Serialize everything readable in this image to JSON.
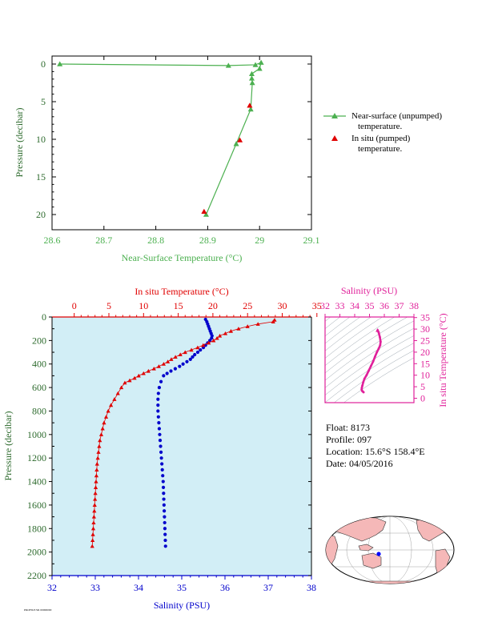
{
  "chart_data": [
    {
      "id": "near-surface",
      "type": "line",
      "xlabel": "Near-Surface Temperature (°C)",
      "ylabel": "Pressure (decibar)",
      "xlim": [
        28.6,
        29.1
      ],
      "ylim": [
        0,
        22
      ],
      "y_inverted": true,
      "x_ticks": [
        "28.6",
        "28.7",
        "28.8",
        "28.9",
        "29",
        "29.1"
      ],
      "y_ticks": [
        "0",
        "5",
        "10",
        "15",
        "20"
      ],
      "series": [
        {
          "name": "Near-surface (unpumped) temperature.",
          "marker": "triangle",
          "color": "#4cb050",
          "points": [
            [
              28.615,
              0.0
            ],
            [
              28.94,
              0.2
            ],
            [
              28.992,
              0.1
            ],
            [
              29.003,
              -0.2
            ],
            [
              29.0,
              0.6
            ],
            [
              28.985,
              1.3
            ],
            [
              28.985,
              1.9
            ],
            [
              28.986,
              2.5
            ],
            [
              28.983,
              6.0
            ],
            [
              28.955,
              10.6
            ],
            [
              28.897,
              20.0
            ]
          ]
        },
        {
          "name": "In situ (pumped) temperature.",
          "marker": "triangle",
          "color": "#e00000",
          "points": [
            [
              28.981,
              5.5
            ],
            [
              28.962,
              10.1
            ],
            [
              28.893,
              19.6
            ]
          ]
        }
      ],
      "legend": [
        "Near-surface (unpumped)",
        "temperature.",
        "In situ (pumped)",
        "temperature."
      ],
      "legend_position": "right"
    },
    {
      "id": "profile",
      "type": "scatter",
      "top_xlabel": "In situ Temperature (°C)",
      "bottom_xlabel": "Salinity (PSU)",
      "ylabel": "Pressure (decibar)",
      "temperature_lim": [
        -2,
        35
      ],
      "salinity_lim": [
        32,
        38
      ],
      "pressure_lim": [
        0,
        2200
      ],
      "y_inverted": true,
      "top_ticks": [
        "0",
        "5",
        "10",
        "15",
        "20",
        "25",
        "30",
        "35"
      ],
      "bottom_ticks": [
        "32",
        "33",
        "34",
        "35",
        "36",
        "37",
        "38"
      ],
      "y_ticks": [
        "0",
        "200",
        "400",
        "600",
        "800",
        "1000",
        "1200",
        "1400",
        "1600",
        "1800",
        "2000",
        "2200"
      ],
      "background": "#d2eef6",
      "temperature_series": {
        "color": "#e00000",
        "marker": "triangle",
        "points": [
          [
            28.9,
            25
          ],
          [
            28.7,
            40
          ],
          [
            26.5,
            60
          ],
          [
            25,
            80
          ],
          [
            23.7,
            100
          ],
          [
            22.6,
            120
          ],
          [
            21.8,
            140
          ],
          [
            21,
            160
          ],
          [
            20.6,
            180
          ],
          [
            20.1,
            200
          ],
          [
            19.4,
            220
          ],
          [
            18.6,
            240
          ],
          [
            17.8,
            260
          ],
          [
            16.9,
            280
          ],
          [
            16,
            300
          ],
          [
            15.3,
            320
          ],
          [
            14.6,
            340
          ],
          [
            14,
            360
          ],
          [
            13.5,
            380
          ],
          [
            12.9,
            400
          ],
          [
            12.2,
            420
          ],
          [
            11.5,
            440
          ],
          [
            10.7,
            460
          ],
          [
            10,
            480
          ],
          [
            9.3,
            500
          ],
          [
            8.7,
            520
          ],
          [
            8,
            540
          ],
          [
            7.3,
            560
          ],
          [
            6.8,
            600
          ],
          [
            6.3,
            650
          ],
          [
            5.8,
            700
          ],
          [
            5.3,
            750
          ],
          [
            4.9,
            800
          ],
          [
            4.6,
            850
          ],
          [
            4.3,
            900
          ],
          [
            4.1,
            950
          ],
          [
            3.9,
            1000
          ],
          [
            3.7,
            1050
          ],
          [
            3.6,
            1100
          ],
          [
            3.5,
            1150
          ],
          [
            3.4,
            1200
          ],
          [
            3.3,
            1250
          ],
          [
            3.25,
            1300
          ],
          [
            3.2,
            1350
          ],
          [
            3.15,
            1400
          ],
          [
            3.1,
            1450
          ],
          [
            3.05,
            1500
          ],
          [
            3,
            1550
          ],
          [
            2.95,
            1600
          ],
          [
            2.9,
            1650
          ],
          [
            2.85,
            1700
          ],
          [
            2.8,
            1750
          ],
          [
            2.75,
            1800
          ],
          [
            2.7,
            1850
          ],
          [
            2.65,
            1900
          ],
          [
            2.6,
            1950
          ]
        ]
      },
      "salinity_series": {
        "color": "#0000cc",
        "marker": "circle",
        "points": [
          [
            35.55,
            20
          ],
          [
            35.58,
            40
          ],
          [
            35.6,
            60
          ],
          [
            35.62,
            80
          ],
          [
            35.64,
            100
          ],
          [
            35.66,
            120
          ],
          [
            35.68,
            140
          ],
          [
            35.7,
            160
          ],
          [
            35.69,
            180
          ],
          [
            35.65,
            200
          ],
          [
            35.6,
            220
          ],
          [
            35.55,
            240
          ],
          [
            35.5,
            260
          ],
          [
            35.43,
            280
          ],
          [
            35.37,
            300
          ],
          [
            35.3,
            320
          ],
          [
            35.25,
            340
          ],
          [
            35.2,
            360
          ],
          [
            35.12,
            380
          ],
          [
            35.03,
            400
          ],
          [
            34.95,
            420
          ],
          [
            34.85,
            440
          ],
          [
            34.75,
            460
          ],
          [
            34.66,
            480
          ],
          [
            34.58,
            500
          ],
          [
            34.52,
            550
          ],
          [
            34.48,
            600
          ],
          [
            34.46,
            650
          ],
          [
            34.45,
            700
          ],
          [
            34.45,
            750
          ],
          [
            34.45,
            800
          ],
          [
            34.46,
            850
          ],
          [
            34.47,
            900
          ],
          [
            34.48,
            950
          ],
          [
            34.49,
            1000
          ],
          [
            34.5,
            1050
          ],
          [
            34.51,
            1100
          ],
          [
            34.52,
            1150
          ],
          [
            34.53,
            1200
          ],
          [
            34.54,
            1250
          ],
          [
            34.55,
            1300
          ],
          [
            34.56,
            1350
          ],
          [
            34.57,
            1400
          ],
          [
            34.575,
            1450
          ],
          [
            34.58,
            1500
          ],
          [
            34.585,
            1550
          ],
          [
            34.59,
            1600
          ],
          [
            34.595,
            1650
          ],
          [
            34.6,
            1700
          ],
          [
            34.605,
            1750
          ],
          [
            34.61,
            1800
          ],
          [
            34.615,
            1850
          ],
          [
            34.62,
            1900
          ],
          [
            34.625,
            1950
          ]
        ]
      }
    },
    {
      "id": "ts-diagram",
      "type": "scatter",
      "top_xlabel": "Salinity (PSU)",
      "right_ylabel": "In situ Temperature (°C)",
      "salinity_lim": [
        32,
        38
      ],
      "temperature_lim": [
        -2,
        35
      ],
      "top_ticks": [
        "32",
        "33",
        "34",
        "35",
        "36",
        "37",
        "38"
      ],
      "right_ticks": [
        "0",
        "5",
        "10",
        "15",
        "20",
        "25",
        "30",
        "35"
      ],
      "color": "#e0209a",
      "points": [
        [
          35.55,
          29.5
        ],
        [
          35.62,
          28.5
        ],
        [
          35.7,
          26.5
        ],
        [
          35.75,
          24.5
        ],
        [
          35.72,
          23
        ],
        [
          35.62,
          21.5
        ],
        [
          35.5,
          20
        ],
        [
          35.37,
          18
        ],
        [
          35.25,
          16
        ],
        [
          35.1,
          14
        ],
        [
          34.95,
          12
        ],
        [
          34.8,
          10
        ],
        [
          34.66,
          8.5
        ],
        [
          34.58,
          7
        ],
        [
          34.52,
          5.5
        ],
        [
          34.48,
          4.5
        ],
        [
          34.47,
          3.8
        ],
        [
          34.5,
          3.2
        ],
        [
          34.55,
          2.9
        ],
        [
          34.6,
          2.6
        ]
      ]
    }
  ],
  "float_info": {
    "float": "Float:  8173",
    "profile": "Profile:  097",
    "location": "Location:  15.6°S  158.4°E",
    "date": "Date:  04/05/2016"
  },
  "map": {
    "ocean_color": "#ffffff",
    "land_color": "#f5b8b8",
    "marker_color": "#0000ff"
  },
  "footer": "PROFILE/SR 00000000"
}
